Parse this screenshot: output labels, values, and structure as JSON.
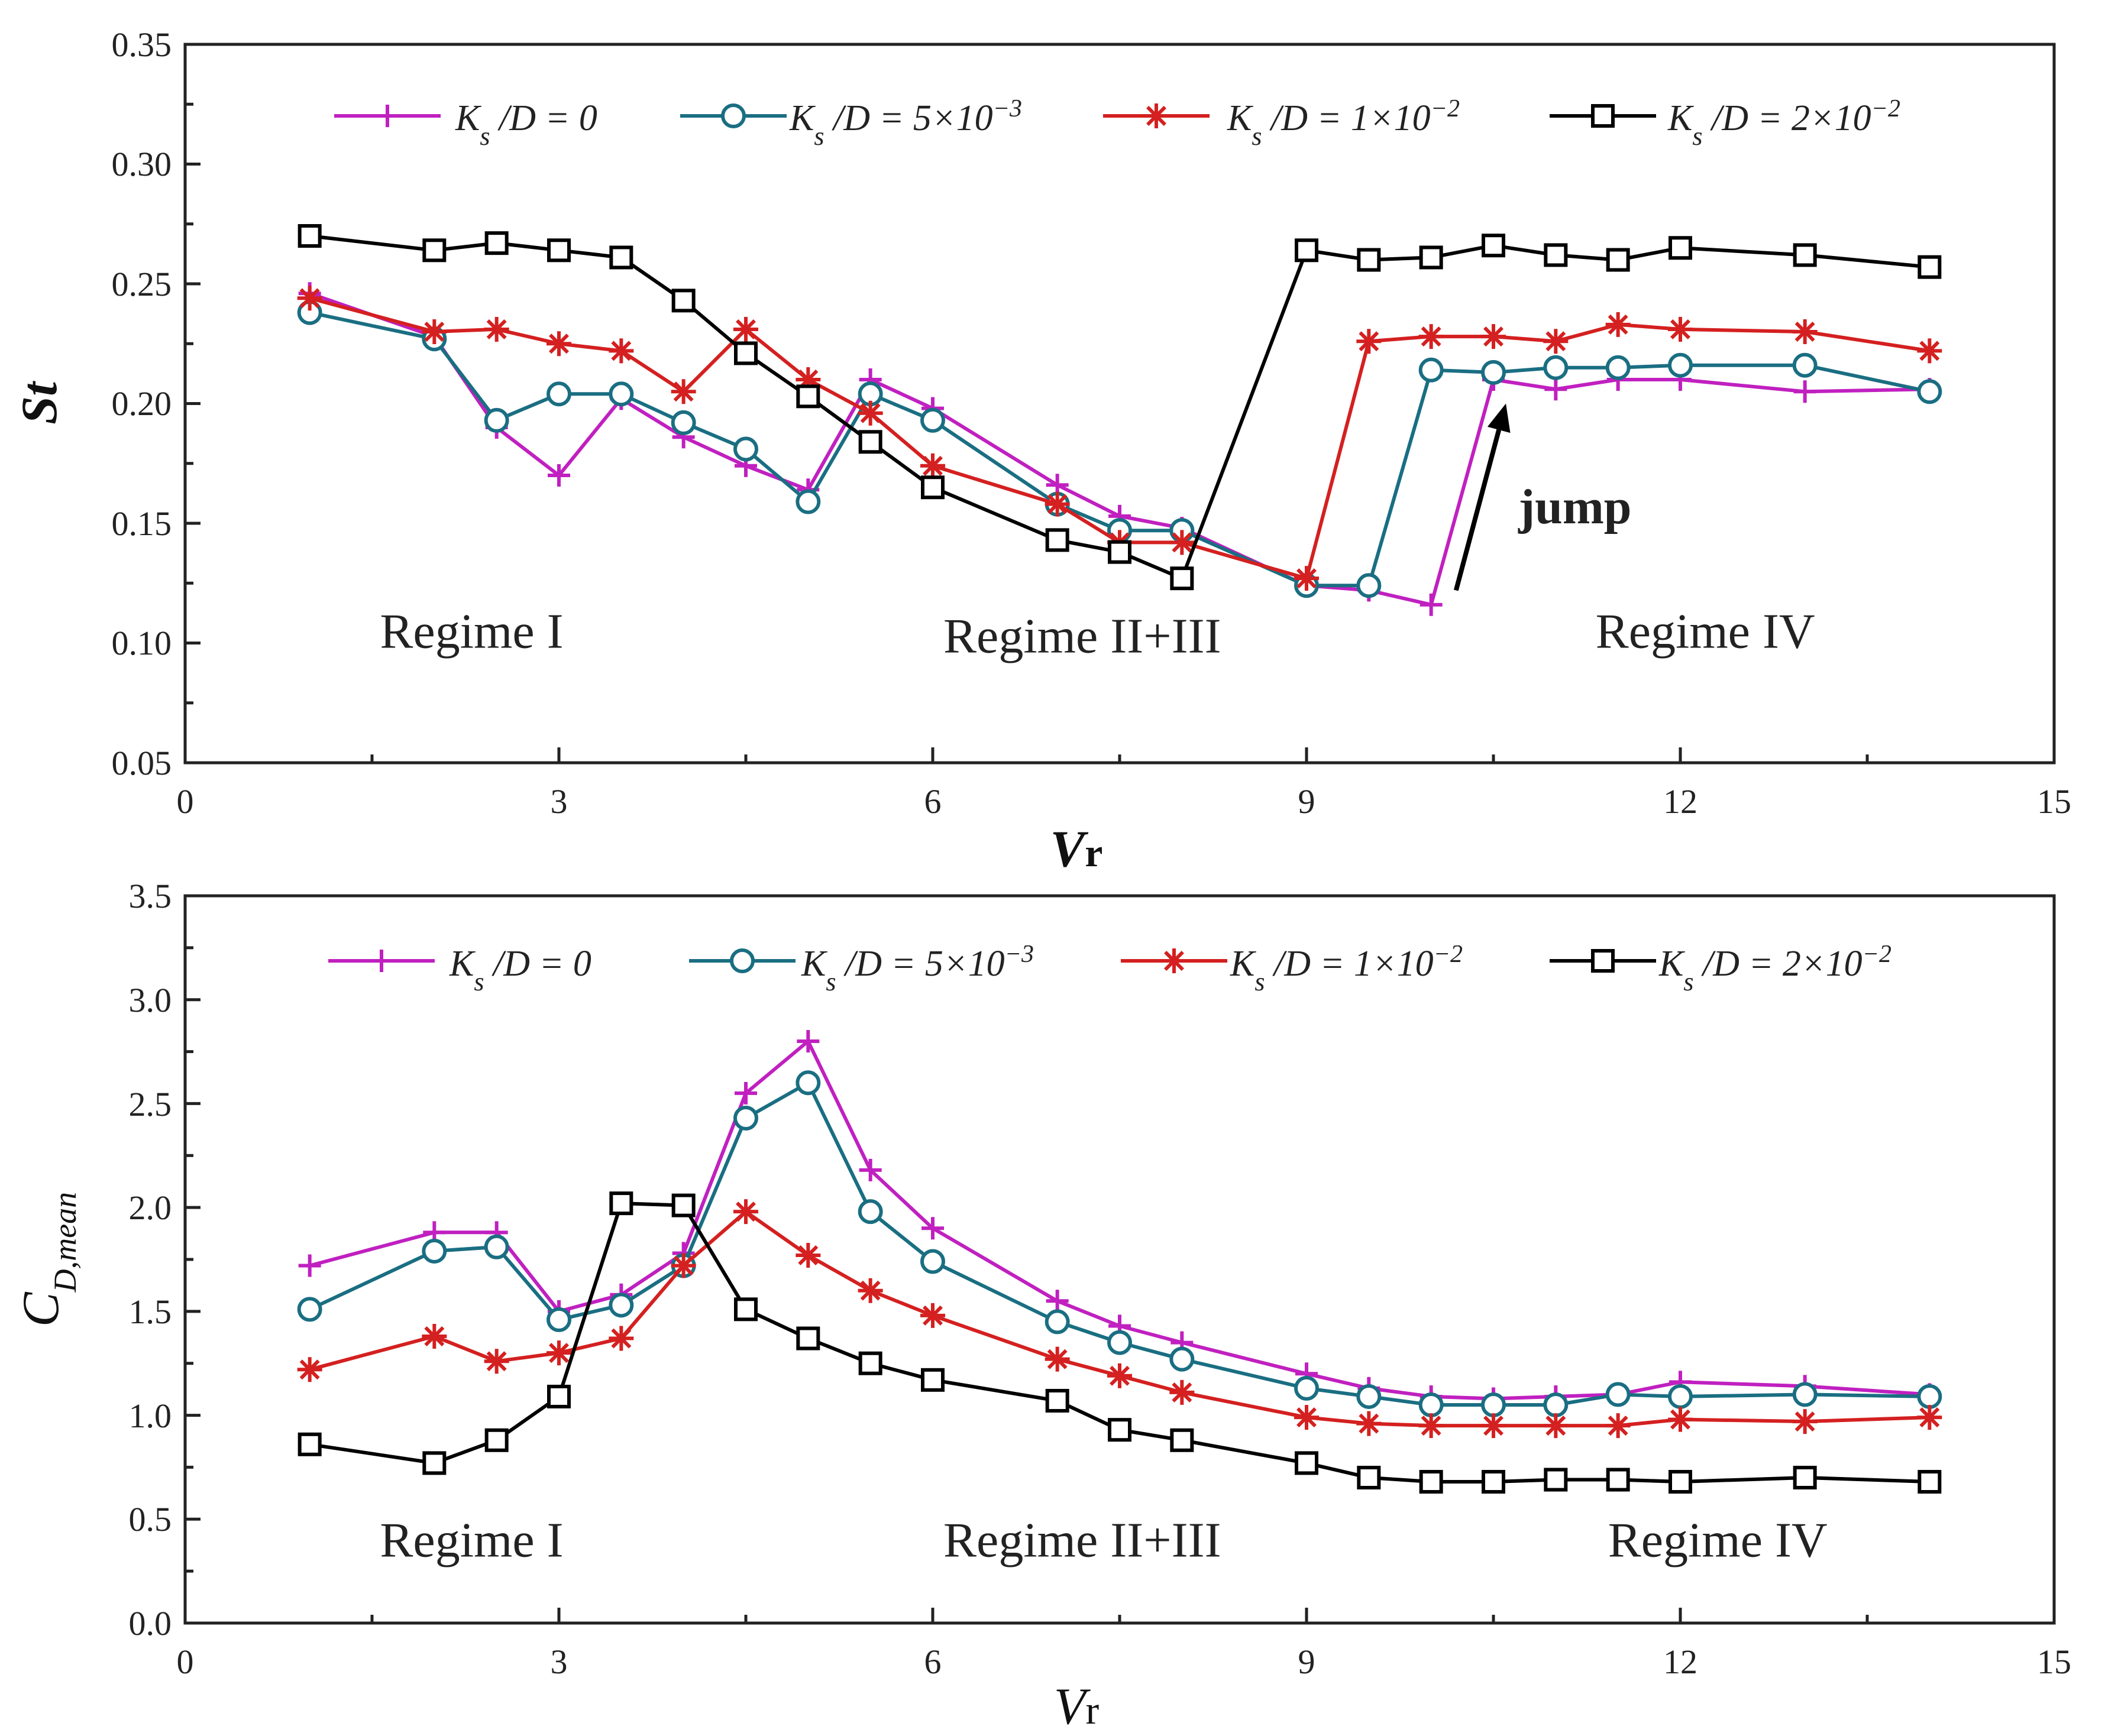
{
  "figure": {
    "background": "#ffffff",
    "axis_color": "#222222"
  },
  "chart_data": [
    {
      "id": "st",
      "type": "line",
      "ylabel": "St",
      "xlabel": "Vr",
      "xlim": [
        0,
        15
      ],
      "ylim": [
        0.05,
        0.35
      ],
      "xticks": [
        0,
        3,
        6,
        9,
        12,
        15
      ],
      "xtick_labels": [
        "0",
        "3",
        "6",
        "9",
        "12",
        "15"
      ],
      "yticks": [
        0.05,
        0.1,
        0.15,
        0.2,
        0.25,
        0.3,
        0.35
      ],
      "ytick_labels": [
        "0.05",
        "0.10",
        "0.15",
        "0.20",
        "0.25",
        "0.30",
        "0.35"
      ],
      "legend": "top",
      "series": [
        {
          "name": "Ks/D = 0",
          "legend_label": "K_s /D = 0",
          "color": "#c020c0",
          "marker": "plus",
          "x": [
            1,
            2,
            2.5,
            3,
            3.5,
            4,
            4.5,
            5,
            5.5,
            6,
            7,
            7.5,
            8,
            9,
            9.5,
            10,
            10.5,
            11,
            11.5,
            12,
            13,
            14
          ],
          "y": [
            0.246,
            0.228,
            0.19,
            0.17,
            0.202,
            0.186,
            0.174,
            0.164,
            0.21,
            0.198,
            0.166,
            0.153,
            0.148,
            0.124,
            0.122,
            0.116,
            0.21,
            0.206,
            0.21,
            0.21,
            0.205,
            0.206
          ]
        },
        {
          "name": "Ks/D = 5e-3",
          "legend_label": "K_s /D = 5×10^−3",
          "color": "#1a6e82",
          "marker": "circle",
          "x": [
            1,
            2,
            2.5,
            3,
            3.5,
            4,
            4.5,
            5,
            5.5,
            6,
            7,
            7.5,
            8,
            9,
            9.5,
            10,
            10.5,
            11,
            11.5,
            12,
            13,
            14
          ],
          "y": [
            0.238,
            0.227,
            0.193,
            0.204,
            0.204,
            0.192,
            0.181,
            0.159,
            0.204,
            0.193,
            0.158,
            0.147,
            0.147,
            0.124,
            0.124,
            0.214,
            0.213,
            0.215,
            0.215,
            0.216,
            0.216,
            0.205
          ]
        },
        {
          "name": "Ks/D = 1e-2",
          "legend_label": "K_s /D = 1×10^−2",
          "color": "#d42020",
          "marker": "asterisk",
          "x": [
            1,
            2,
            2.5,
            3,
            3.5,
            4,
            4.5,
            5,
            5.5,
            6,
            7,
            7.5,
            8,
            9,
            9.5,
            10,
            10.5,
            11,
            11.5,
            12,
            13,
            14
          ],
          "y": [
            0.244,
            0.23,
            0.231,
            0.225,
            0.222,
            0.205,
            0.231,
            0.21,
            0.196,
            0.174,
            0.158,
            0.142,
            0.142,
            0.127,
            0.226,
            0.228,
            0.228,
            0.226,
            0.233,
            0.231,
            0.23,
            0.222
          ]
        },
        {
          "name": "Ks/D = 2e-2",
          "legend_label": "K_s /D = 2×10^−2",
          "color": "#000000",
          "marker": "square",
          "x": [
            1,
            2,
            2.5,
            3,
            3.5,
            4,
            4.5,
            5,
            5.5,
            6,
            7,
            7.5,
            8,
            9,
            9.5,
            10,
            10.5,
            11,
            11.5,
            12,
            13,
            14
          ],
          "y": [
            0.27,
            0.264,
            0.267,
            0.264,
            0.261,
            0.243,
            0.221,
            0.203,
            0.184,
            0.165,
            0.143,
            0.138,
            0.127,
            0.264,
            0.26,
            0.261,
            0.266,
            0.262,
            0.26,
            0.265,
            0.262,
            0.257
          ]
        }
      ],
      "regimes": [
        {
          "label": "Regime I",
          "x": 2.3,
          "y": 0.098
        },
        {
          "label": "Regime II+III",
          "x": 7.2,
          "y": 0.096
        },
        {
          "label": "Regime IV",
          "x": 12.2,
          "y": 0.098
        }
      ],
      "annotation": {
        "text": "jump",
        "text_x": 10.7,
        "text_y": 0.15,
        "arrow_from": [
          10.2,
          0.122
        ],
        "arrow_to": [
          10.6,
          0.2
        ]
      }
    },
    {
      "id": "cd",
      "type": "line",
      "ylabel": "C_{D,mean}",
      "xlabel": "Vr",
      "xlim": [
        0,
        15
      ],
      "ylim": [
        0.0,
        3.5
      ],
      "xticks": [
        0,
        3,
        6,
        9,
        12,
        15
      ],
      "xtick_labels": [
        "0",
        "3",
        "6",
        "9",
        "12",
        "15"
      ],
      "yticks": [
        0.0,
        0.5,
        1.0,
        1.5,
        2.0,
        2.5,
        3.0,
        3.5
      ],
      "ytick_labels": [
        "0.0",
        "0.5",
        "1.0",
        "1.5",
        "2.0",
        "2.5",
        "3.0",
        "3.5"
      ],
      "legend": "top",
      "series": [
        {
          "name": "Ks/D = 0",
          "legend_label": "K_s /D = 0",
          "color": "#c020c0",
          "marker": "plus",
          "x": [
            1,
            2,
            2.5,
            3,
            3.5,
            4,
            4.5,
            5,
            5.5,
            6,
            7,
            7.5,
            8,
            9,
            9.5,
            10,
            10.5,
            11,
            11.5,
            12,
            13,
            14
          ],
          "y": [
            1.72,
            1.88,
            1.88,
            1.5,
            1.58,
            1.78,
            2.55,
            2.8,
            2.18,
            1.9,
            1.55,
            1.43,
            1.35,
            1.2,
            1.13,
            1.09,
            1.08,
            1.09,
            1.1,
            1.16,
            1.14,
            1.1
          ]
        },
        {
          "name": "Ks/D = 5e-3",
          "legend_label": "K_s /D = 5×10^−3",
          "color": "#1a6e82",
          "marker": "circle",
          "x": [
            1,
            2,
            2.5,
            3,
            3.5,
            4,
            4.5,
            5,
            5.5,
            6,
            7,
            7.5,
            8,
            9,
            9.5,
            10,
            10.5,
            11,
            11.5,
            12,
            13,
            14
          ],
          "y": [
            1.51,
            1.79,
            1.81,
            1.46,
            1.53,
            1.72,
            2.43,
            2.6,
            1.98,
            1.74,
            1.45,
            1.35,
            1.27,
            1.13,
            1.09,
            1.05,
            1.05,
            1.05,
            1.1,
            1.09,
            1.1,
            1.09
          ]
        },
        {
          "name": "Ks/D = 1e-2",
          "legend_label": "K_s /D = 1×10^−2",
          "color": "#d42020",
          "marker": "asterisk",
          "x": [
            1,
            2,
            2.5,
            3,
            3.5,
            4,
            4.5,
            5,
            5.5,
            6,
            7,
            7.5,
            8,
            9,
            9.5,
            10,
            10.5,
            11,
            11.5,
            12,
            13,
            14
          ],
          "y": [
            1.22,
            1.38,
            1.26,
            1.3,
            1.37,
            1.72,
            1.98,
            1.77,
            1.6,
            1.48,
            1.27,
            1.19,
            1.11,
            0.99,
            0.96,
            0.95,
            0.95,
            0.95,
            0.95,
            0.98,
            0.97,
            0.99
          ]
        },
        {
          "name": "Ks/D = 2e-2",
          "legend_label": "K_s /D = 2×10^−2",
          "color": "#000000",
          "marker": "square",
          "x": [
            1,
            2,
            2.5,
            3,
            3.5,
            4,
            4.5,
            5,
            5.5,
            6,
            7,
            7.5,
            8,
            9,
            9.5,
            10,
            10.5,
            11,
            11.5,
            12,
            13,
            14
          ],
          "y": [
            0.86,
            0.77,
            0.88,
            1.09,
            2.02,
            2.01,
            1.51,
            1.37,
            1.25,
            1.17,
            1.07,
            0.93,
            0.88,
            0.77,
            0.7,
            0.68,
            0.68,
            0.69,
            0.69,
            0.68,
            0.7,
            0.68
          ]
        }
      ],
      "regimes": [
        {
          "label": "Regime I",
          "x": 2.3,
          "y": 0.32
        },
        {
          "label": "Regime II+III",
          "x": 7.2,
          "y": 0.32
        },
        {
          "label": "Regime IV",
          "x": 12.3,
          "y": 0.32
        }
      ]
    }
  ]
}
